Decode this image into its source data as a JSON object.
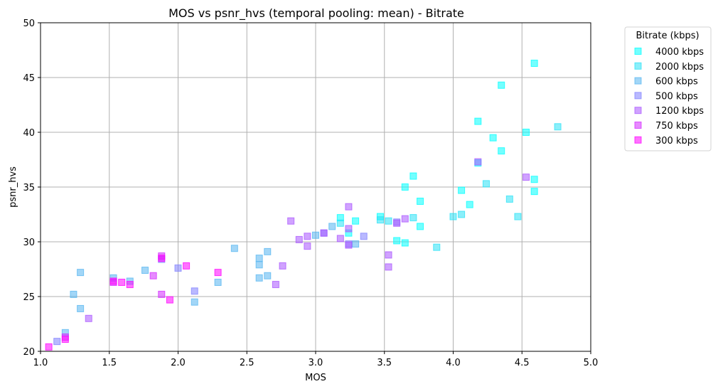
{
  "chart_data": {
    "type": "scatter",
    "title": "MOS vs psnr_hvs (temporal pooling: mean) - Bitrate",
    "xlabel": "MOS",
    "ylabel": "psnr_hvs",
    "xlim": [
      1.0,
      5.0
    ],
    "ylim": [
      20,
      50
    ],
    "xticks": [
      "1.0",
      "1.5",
      "2.0",
      "2.5",
      "3.0",
      "3.5",
      "4.0",
      "4.5",
      "5.0"
    ],
    "yticks": [
      "20",
      "25",
      "30",
      "35",
      "40",
      "45",
      "50"
    ],
    "grid": true,
    "marker": "square",
    "legend": {
      "title": "Bitrate (kbps)",
      "placement": "outside-right"
    },
    "series": [
      {
        "name": "4000 kbps",
        "color": "#00ffff",
        "points": [
          [
            4.59,
            46.3
          ],
          [
            4.35,
            44.3
          ],
          [
            4.18,
            41.0
          ],
          [
            4.29,
            39.5
          ],
          [
            4.53,
            40.0
          ],
          [
            4.35,
            38.3
          ],
          [
            4.18,
            37.2
          ],
          [
            3.71,
            36.0
          ],
          [
            3.65,
            35.0
          ],
          [
            4.59,
            35.7
          ],
          [
            4.59,
            34.6
          ],
          [
            3.76,
            33.7
          ],
          [
            4.12,
            33.4
          ],
          [
            4.06,
            34.7
          ],
          [
            3.47,
            32.3
          ],
          [
            3.18,
            32.2
          ],
          [
            3.29,
            31.9
          ],
          [
            3.76,
            31.4
          ],
          [
            3.24,
            30.8
          ],
          [
            3.59,
            30.1
          ],
          [
            3.65,
            29.9
          ]
        ]
      },
      {
        "name": "2000 kbps",
        "color": "#2ae2f6",
        "points": [
          [
            4.76,
            40.5
          ],
          [
            4.24,
            35.3
          ],
          [
            4.41,
            33.9
          ],
          [
            4.47,
            32.3
          ],
          [
            4.06,
            32.5
          ],
          [
            4.0,
            32.3
          ],
          [
            3.71,
            32.2
          ],
          [
            3.47,
            32.0
          ],
          [
            3.53,
            31.9
          ],
          [
            3.88,
            29.5
          ],
          [
            3.18,
            31.7
          ]
        ]
      },
      {
        "name": "600 kbps",
        "color": "#55b5f0",
        "points": [
          [
            3.12,
            31.4
          ],
          [
            3.0,
            30.6
          ],
          [
            2.41,
            29.4
          ],
          [
            2.65,
            29.1
          ],
          [
            2.59,
            28.5
          ],
          [
            2.59,
            27.9
          ],
          [
            2.65,
            26.9
          ],
          [
            2.59,
            26.7
          ],
          [
            2.29,
            26.3
          ],
          [
            1.29,
            27.2
          ],
          [
            1.76,
            27.4
          ],
          [
            1.53,
            26.7
          ],
          [
            1.65,
            26.4
          ],
          [
            1.24,
            25.2
          ],
          [
            1.29,
            23.9
          ],
          [
            2.12,
            24.5
          ],
          [
            1.18,
            21.7
          ],
          [
            3.29,
            29.8
          ]
        ]
      },
      {
        "name": "500 kbps",
        "color": "#8080ff",
        "points": [
          [
            3.06,
            30.8
          ],
          [
            3.35,
            30.5
          ],
          [
            3.24,
            29.8
          ],
          [
            2.0,
            27.6
          ],
          [
            2.12,
            25.5
          ],
          [
            1.88,
            28.4
          ],
          [
            1.12,
            20.9
          ],
          [
            3.59,
            31.8
          ]
        ]
      },
      {
        "name": "1200 kbps",
        "color": "#aa55ff",
        "points": [
          [
            3.24,
            33.2
          ],
          [
            2.82,
            31.9
          ],
          [
            2.94,
            30.5
          ],
          [
            2.88,
            30.2
          ],
          [
            2.94,
            29.6
          ],
          [
            3.06,
            30.8
          ],
          [
            3.18,
            30.3
          ],
          [
            3.24,
            29.7
          ],
          [
            3.24,
            31.2
          ],
          [
            3.59,
            31.7
          ],
          [
            3.65,
            32.1
          ],
          [
            3.53,
            28.8
          ],
          [
            3.53,
            27.7
          ],
          [
            2.76,
            27.8
          ],
          [
            2.71,
            26.1
          ],
          [
            1.35,
            23.0
          ],
          [
            4.18,
            37.3
          ],
          [
            4.53,
            35.9
          ]
        ]
      },
      {
        "name": "750 kbps",
        "color": "#d42aff",
        "points": [
          [
            1.88,
            28.7
          ],
          [
            1.88,
            25.2
          ],
          [
            1.53,
            26.3
          ],
          [
            1.82,
            26.9
          ],
          [
            1.18,
            21.3
          ]
        ]
      },
      {
        "name": "300 kbps",
        "color": "#ff00ff",
        "points": [
          [
            1.88,
            28.5
          ],
          [
            2.06,
            27.8
          ],
          [
            2.29,
            27.2
          ],
          [
            1.53,
            26.4
          ],
          [
            1.59,
            26.3
          ],
          [
            1.65,
            26.1
          ],
          [
            1.94,
            24.7
          ],
          [
            1.06,
            20.4
          ],
          [
            1.18,
            21.1
          ]
        ]
      }
    ]
  }
}
